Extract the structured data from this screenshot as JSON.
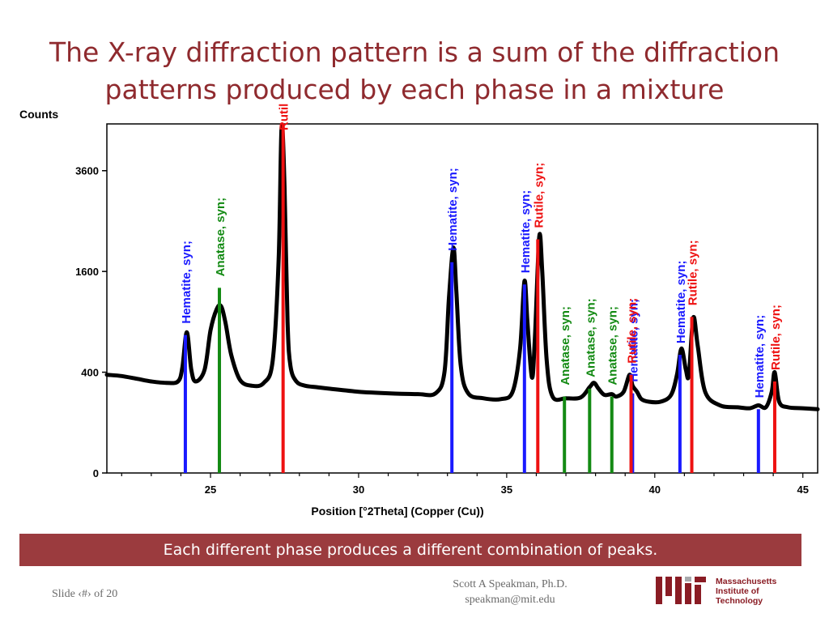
{
  "slide": {
    "title_line1": "The X-ray diffraction pattern is a sum of the diffraction",
    "title_line2": "patterns produced by each phase in a mixture",
    "banner": "Each different phase produces a different combination of peaks.",
    "footer_slide": "Slide ‹#› of 20",
    "author_line1": "Scott A Speakman, Ph.D.",
    "author_line2": "speakman@mit.edu",
    "logo_word": "MIT",
    "logo_line1": "Massachusetts",
    "logo_line2": "Institute of",
    "logo_line3": "Technology"
  },
  "colors": {
    "title": "#8f2a2e",
    "banner_bg": "#9b3b3e",
    "hematite": "#1a1aff",
    "anatase": "#138a13",
    "rutile": "#ee1111",
    "pattern": "#000000",
    "mit_red": "#8a1c24"
  },
  "chart_data": {
    "type": "line",
    "title": "",
    "xlabel": "Position [°2Theta] (Copper (Cu))",
    "ylabel": "Counts",
    "scale_y": "sqrt",
    "xlim": [
      21.5,
      45.5
    ],
    "ylim": [
      0,
      4800
    ],
    "x_ticks": [
      25,
      30,
      35,
      40,
      45
    ],
    "y_ticks": [
      0,
      400,
      1600,
      3600
    ],
    "grid": false,
    "series": [
      {
        "x": [
          21.5,
          22.0,
          22.5,
          23.0,
          23.5,
          23.9,
          24.05,
          24.2,
          24.35,
          24.5,
          24.8,
          25.0,
          25.2,
          25.35,
          25.5,
          25.7,
          26.0,
          26.4,
          26.8,
          27.1,
          27.3,
          27.4,
          27.5,
          27.6,
          27.7,
          27.9,
          28.2,
          28.6,
          29.0,
          30.0,
          31.0,
          32.0,
          32.6,
          32.9,
          33.05,
          33.2,
          33.3,
          33.45,
          33.7,
          34.2,
          34.8,
          35.2,
          35.45,
          35.6,
          35.7,
          35.85,
          35.95,
          36.1,
          36.2,
          36.35,
          36.55,
          37.0,
          37.5,
          37.8,
          37.95,
          38.1,
          38.3,
          38.55,
          38.7,
          38.95,
          39.15,
          39.25,
          39.4,
          39.55,
          39.8,
          40.2,
          40.55,
          40.75,
          40.9,
          41.05,
          41.15,
          41.3,
          41.45,
          41.7,
          42.2,
          42.8,
          43.2,
          43.5,
          43.75,
          43.95,
          44.05,
          44.2,
          44.5,
          45.0,
          45.5
        ],
        "y": [
          380,
          370,
          350,
          330,
          320,
          330,
          440,
          780,
          420,
          330,
          420,
          800,
          1050,
          1100,
          900,
          550,
          340,
          300,
          320,
          500,
          1800,
          4700,
          3200,
          900,
          450,
          330,
          300,
          290,
          280,
          260,
          250,
          245,
          250,
          400,
          1200,
          2000,
          1300,
          450,
          250,
          220,
          215,
          260,
          600,
          1450,
          900,
          360,
          700,
          2200,
          1600,
          500,
          230,
          220,
          225,
          290,
          320,
          280,
          240,
          245,
          230,
          260,
          380,
          300,
          260,
          215,
          200,
          200,
          240,
          380,
          610,
          420,
          380,
          950,
          640,
          260,
          180,
          170,
          165,
          180,
          170,
          260,
          400,
          200,
          170,
          165,
          160
        ]
      }
    ],
    "phases": [
      {
        "name": "Hematite, syn;",
        "color_key": "hematite",
        "positions": [
          24.15,
          33.15,
          35.6,
          39.25,
          40.85,
          43.5
        ],
        "intensities": [
          750,
          1750,
          1400,
          250,
          550,
          160
        ]
      },
      {
        "name": "Anatase, syn;",
        "color_key": "anatase",
        "positions": [
          25.3,
          36.95,
          37.8,
          38.55
        ],
        "intensities": [
          1350,
          230,
          280,
          230
        ]
      },
      {
        "name": "Rutile, syn;",
        "color_key": "rutile",
        "positions": [
          27.45,
          36.05,
          39.2,
          41.25,
          44.05
        ],
        "intensities": [
          4800,
          2150,
          380,
          960,
          330
        ]
      }
    ]
  }
}
